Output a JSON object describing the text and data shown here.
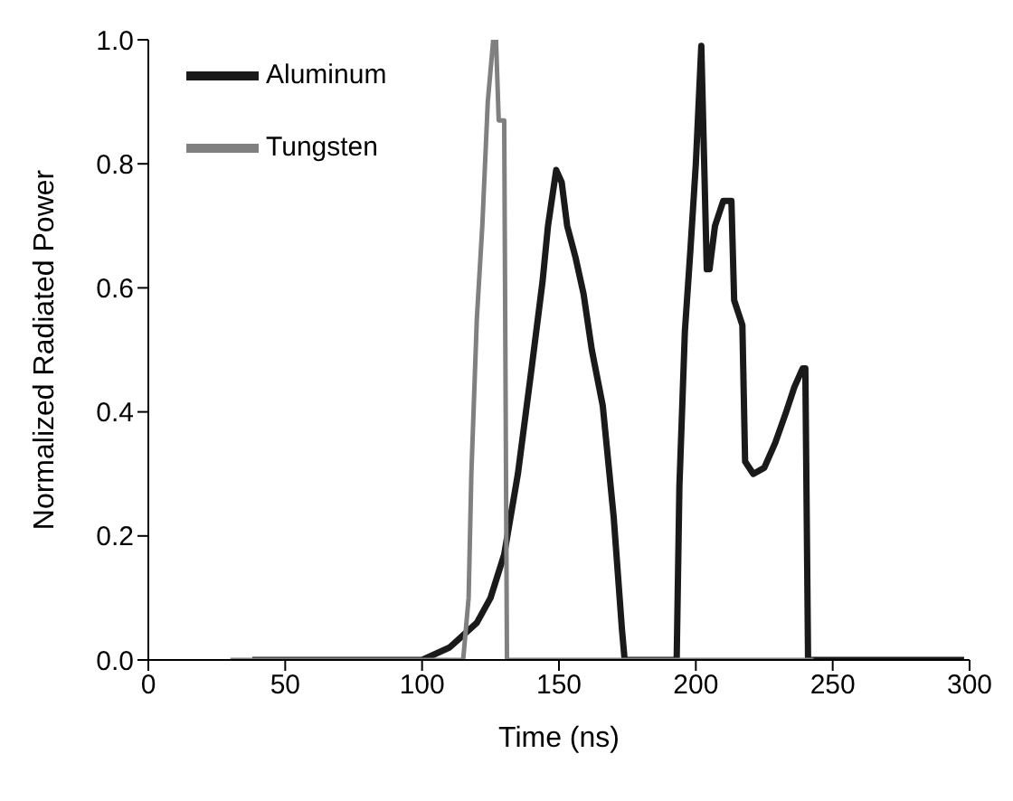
{
  "chart_data": {
    "type": "line",
    "xlabel": "Time (ns)",
    "ylabel": "Normalized Radiated Power",
    "xlim": [
      0,
      300
    ],
    "ylim": [
      0,
      1
    ],
    "xticks": [
      0,
      50,
      100,
      150,
      200,
      250,
      300
    ],
    "yticks": [
      {
        "value": 0,
        "label": "0.0"
      },
      {
        "value": 0.2,
        "label": "0.2"
      },
      {
        "value": 0.4,
        "label": "0.4"
      },
      {
        "value": 0.6,
        "label": "0.6"
      },
      {
        "value": 0.8,
        "label": "0.8"
      },
      {
        "value": 1,
        "label": "1.0"
      }
    ],
    "grid": false,
    "legend": "top left",
    "marker": "none",
    "line_style": "solid",
    "series": [
      {
        "name": "Aluminum",
        "color": "#1a1a1a",
        "x": [
          38,
          100,
          110,
          115,
          120,
          125,
          130,
          135,
          140,
          144,
          146,
          149,
          151,
          153,
          156,
          159,
          162,
          166,
          170,
          173,
          174,
          193,
          194,
          196,
          198,
          200,
          202,
          204,
          205,
          207,
          210,
          213,
          214,
          217,
          218,
          221,
          225,
          229,
          233,
          236,
          239,
          240,
          241,
          298
        ],
        "values": [
          0,
          0,
          0.02,
          0.04,
          0.06,
          0.1,
          0.17,
          0.3,
          0.47,
          0.61,
          0.7,
          0.79,
          0.77,
          0.7,
          0.65,
          0.59,
          0.5,
          0.41,
          0.23,
          0.05,
          0,
          0,
          0.28,
          0.53,
          0.66,
          0.8,
          0.99,
          0.63,
          0.63,
          0.7,
          0.74,
          0.74,
          0.58,
          0.54,
          0.32,
          0.3,
          0.31,
          0.35,
          0.4,
          0.44,
          0.47,
          0.47,
          0,
          0
        ]
      },
      {
        "name": "Tungsten",
        "color": "#808080",
        "x": [
          30,
          115,
          116,
          117,
          118,
          120,
          122,
          124,
          126,
          127,
          128,
          129,
          130,
          131,
          243
        ],
        "values": [
          0,
          0,
          0.05,
          0.1,
          0.3,
          0.55,
          0.7,
          0.9,
          1,
          1,
          0.87,
          0.87,
          0.87,
          0,
          0
        ]
      }
    ]
  }
}
